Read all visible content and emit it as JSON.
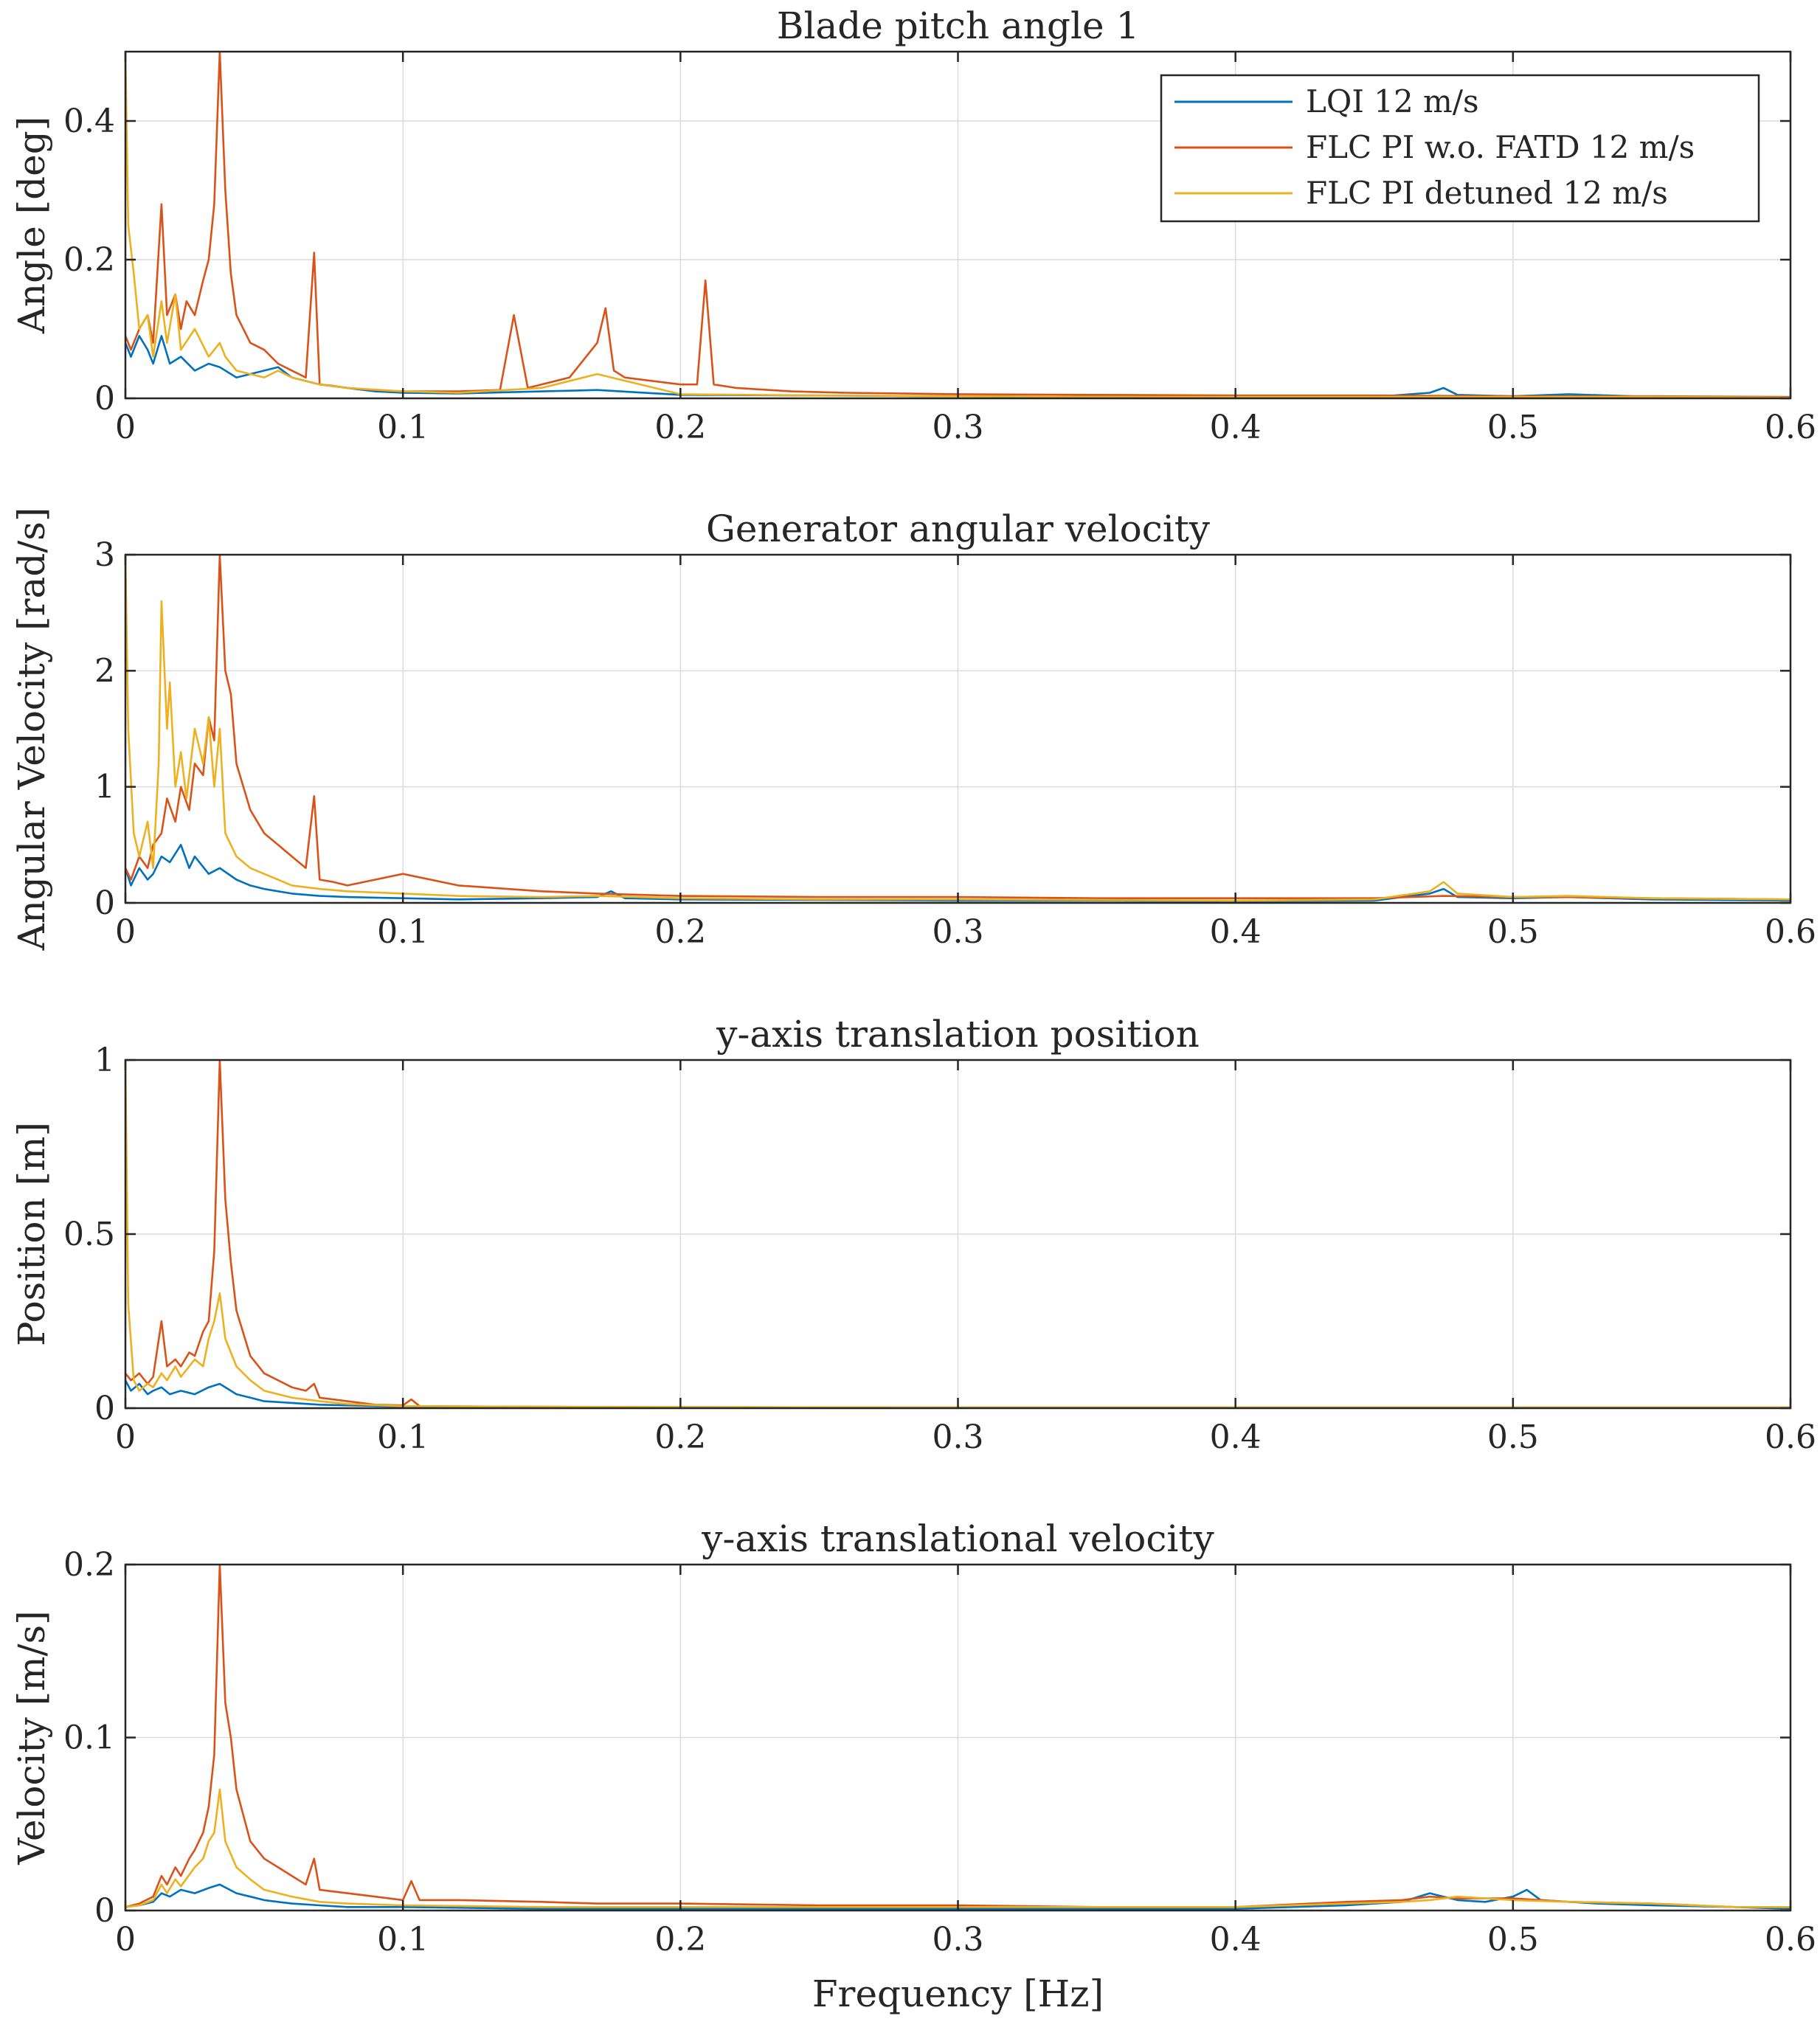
{
  "colors": {
    "lqi": "#0072BD",
    "flc_pi": "#D95319",
    "flc_pi_detuned": "#EDB120"
  },
  "legend": {
    "placement": "top-right",
    "items": [
      "LQI 12 m/s",
      "FLC PI w.o. FATD 12 m/s",
      "FLC PI detuned 12 m/s"
    ]
  },
  "chart_data": [
    {
      "type": "line",
      "title": "Blade pitch angle 1",
      "xlabel": "",
      "ylabel": "Angle [deg]",
      "xlim": [
        0,
        0.6
      ],
      "ylim": [
        0,
        0.5
      ],
      "xticks": [
        "0",
        "0.1",
        "0.2",
        "0.3",
        "0.4",
        "0.5",
        "0.6"
      ],
      "yticks": [
        "0",
        "0.2",
        "0.4"
      ],
      "grid": true,
      "series": [
        {
          "name": "LQI 12 m/s",
          "x": [
            0,
            0.002,
            0.005,
            0.008,
            0.01,
            0.013,
            0.016,
            0.02,
            0.025,
            0.03,
            0.034,
            0.04,
            0.045,
            0.05,
            0.055,
            0.06,
            0.065,
            0.07,
            0.08,
            0.09,
            0.1,
            0.12,
            0.15,
            0.17,
            0.2,
            0.25,
            0.3,
            0.35,
            0.4,
            0.45,
            0.47,
            0.475,
            0.48,
            0.5,
            0.52,
            0.55,
            0.6
          ],
          "y": [
            0.08,
            0.06,
            0.09,
            0.07,
            0.05,
            0.09,
            0.05,
            0.06,
            0.04,
            0.05,
            0.045,
            0.03,
            0.035,
            0.04,
            0.045,
            0.03,
            0.025,
            0.02,
            0.015,
            0.01,
            0.008,
            0.007,
            0.01,
            0.012,
            0.005,
            0.004,
            0.003,
            0.002,
            0.002,
            0.002,
            0.008,
            0.015,
            0.005,
            0.003,
            0.006,
            0.002,
            0.001
          ]
        },
        {
          "name": "FLC PI w.o. FATD 12 m/s",
          "x": [
            0,
            0.002,
            0.005,
            0.008,
            0.01,
            0.013,
            0.015,
            0.018,
            0.02,
            0.022,
            0.025,
            0.028,
            0.03,
            0.032,
            0.034,
            0.036,
            0.038,
            0.04,
            0.045,
            0.05,
            0.055,
            0.06,
            0.065,
            0.068,
            0.07,
            0.075,
            0.08,
            0.09,
            0.1,
            0.12,
            0.135,
            0.14,
            0.145,
            0.16,
            0.17,
            0.173,
            0.176,
            0.18,
            0.2,
            0.206,
            0.209,
            0.212,
            0.22,
            0.24,
            0.26,
            0.3,
            0.35,
            0.4,
            0.45,
            0.5,
            0.55,
            0.6
          ],
          "y": [
            0.09,
            0.07,
            0.1,
            0.12,
            0.08,
            0.28,
            0.12,
            0.15,
            0.1,
            0.14,
            0.12,
            0.17,
            0.2,
            0.28,
            0.5,
            0.3,
            0.18,
            0.12,
            0.08,
            0.07,
            0.05,
            0.04,
            0.03,
            0.21,
            0.02,
            0.018,
            0.015,
            0.012,
            0.01,
            0.01,
            0.012,
            0.12,
            0.015,
            0.03,
            0.08,
            0.13,
            0.04,
            0.03,
            0.02,
            0.02,
            0.17,
            0.02,
            0.015,
            0.01,
            0.008,
            0.006,
            0.005,
            0.004,
            0.004,
            0.003,
            0.003,
            0.002
          ]
        },
        {
          "name": "FLC PI detuned 12 m/s",
          "x": [
            0,
            0.001,
            0.003,
            0.005,
            0.008,
            0.01,
            0.013,
            0.015,
            0.018,
            0.02,
            0.025,
            0.03,
            0.034,
            0.036,
            0.04,
            0.045,
            0.05,
            0.055,
            0.06,
            0.07,
            0.08,
            0.1,
            0.12,
            0.15,
            0.17,
            0.2,
            0.25,
            0.3,
            0.35,
            0.4,
            0.45,
            0.5,
            0.55,
            0.6
          ],
          "y": [
            0.5,
            0.25,
            0.18,
            0.1,
            0.12,
            0.06,
            0.14,
            0.08,
            0.15,
            0.07,
            0.1,
            0.06,
            0.08,
            0.06,
            0.04,
            0.035,
            0.03,
            0.04,
            0.03,
            0.02,
            0.015,
            0.01,
            0.008,
            0.015,
            0.035,
            0.006,
            0.004,
            0.003,
            0.002,
            0.002,
            0.002,
            0.002,
            0.002,
            0.001
          ]
        }
      ]
    },
    {
      "type": "line",
      "title": "Generator angular velocity",
      "xlabel": "",
      "ylabel": "Angular Velocity [rad/s]",
      "xlim": [
        0,
        0.6
      ],
      "ylim": [
        0,
        3
      ],
      "xticks": [
        "0",
        "0.1",
        "0.2",
        "0.3",
        "0.4",
        "0.5",
        "0.6"
      ],
      "yticks": [
        "0",
        "1",
        "2",
        "3"
      ],
      "grid": true,
      "series": [
        {
          "name": "LQI 12 m/s",
          "x": [
            0,
            0.002,
            0.005,
            0.008,
            0.01,
            0.013,
            0.016,
            0.02,
            0.023,
            0.025,
            0.03,
            0.034,
            0.04,
            0.045,
            0.05,
            0.055,
            0.06,
            0.07,
            0.08,
            0.1,
            0.12,
            0.15,
            0.17,
            0.175,
            0.18,
            0.2,
            0.25,
            0.3,
            0.35,
            0.4,
            0.45,
            0.47,
            0.475,
            0.48,
            0.5,
            0.52,
            0.55,
            0.6
          ],
          "y": [
            0.3,
            0.15,
            0.3,
            0.2,
            0.25,
            0.4,
            0.35,
            0.5,
            0.3,
            0.4,
            0.25,
            0.3,
            0.2,
            0.15,
            0.12,
            0.1,
            0.08,
            0.06,
            0.05,
            0.04,
            0.03,
            0.04,
            0.05,
            0.1,
            0.04,
            0.03,
            0.025,
            0.02,
            0.02,
            0.015,
            0.02,
            0.08,
            0.12,
            0.05,
            0.04,
            0.05,
            0.03,
            0.02
          ]
        },
        {
          "name": "FLC PI w.o. FATD 12 m/s",
          "x": [
            0,
            0.002,
            0.005,
            0.008,
            0.01,
            0.013,
            0.015,
            0.018,
            0.02,
            0.023,
            0.025,
            0.028,
            0.03,
            0.032,
            0.034,
            0.036,
            0.038,
            0.04,
            0.045,
            0.05,
            0.055,
            0.06,
            0.065,
            0.068,
            0.07,
            0.075,
            0.08,
            0.09,
            0.1,
            0.12,
            0.15,
            0.17,
            0.2,
            0.25,
            0.3,
            0.35,
            0.4,
            0.45,
            0.475,
            0.5,
            0.52,
            0.55,
            0.6
          ],
          "y": [
            0.3,
            0.2,
            0.4,
            0.3,
            0.5,
            0.6,
            0.9,
            0.7,
            1.0,
            0.8,
            1.2,
            1.1,
            1.6,
            1.4,
            3.0,
            2.0,
            1.8,
            1.2,
            0.8,
            0.6,
            0.5,
            0.4,
            0.3,
            0.92,
            0.2,
            0.18,
            0.15,
            0.2,
            0.25,
            0.15,
            0.1,
            0.08,
            0.06,
            0.05,
            0.05,
            0.04,
            0.04,
            0.04,
            0.06,
            0.05,
            0.05,
            0.04,
            0.03
          ]
        },
        {
          "name": "FLC PI detuned 12 m/s",
          "x": [
            0,
            0.001,
            0.003,
            0.005,
            0.008,
            0.01,
            0.012,
            0.013,
            0.015,
            0.016,
            0.018,
            0.02,
            0.022,
            0.025,
            0.028,
            0.03,
            0.032,
            0.034,
            0.036,
            0.04,
            0.045,
            0.05,
            0.055,
            0.06,
            0.07,
            0.08,
            0.1,
            0.12,
            0.15,
            0.17,
            0.2,
            0.25,
            0.3,
            0.35,
            0.4,
            0.45,
            0.47,
            0.475,
            0.48,
            0.5,
            0.52,
            0.55,
            0.6
          ],
          "y": [
            3.0,
            1.5,
            0.6,
            0.4,
            0.7,
            0.3,
            1.2,
            2.6,
            1.5,
            1.9,
            1.0,
            1.3,
            0.9,
            1.5,
            1.2,
            1.6,
            1.0,
            1.5,
            0.6,
            0.4,
            0.3,
            0.25,
            0.2,
            0.15,
            0.12,
            0.1,
            0.08,
            0.06,
            0.05,
            0.06,
            0.04,
            0.03,
            0.03,
            0.025,
            0.02,
            0.03,
            0.1,
            0.18,
            0.08,
            0.05,
            0.06,
            0.04,
            0.03
          ]
        }
      ]
    },
    {
      "type": "line",
      "title": "y-axis translation position",
      "xlabel": "",
      "ylabel": "Position [m]",
      "xlim": [
        0,
        0.6
      ],
      "ylim": [
        0,
        1
      ],
      "xticks": [
        "0",
        "0.1",
        "0.2",
        "0.3",
        "0.4",
        "0.5",
        "0.6"
      ],
      "yticks": [
        "0",
        "0.5",
        "1"
      ],
      "grid": true,
      "series": [
        {
          "name": "LQI 12 m/s",
          "x": [
            0,
            0.002,
            0.005,
            0.008,
            0.01,
            0.013,
            0.016,
            0.02,
            0.025,
            0.03,
            0.034,
            0.04,
            0.045,
            0.05,
            0.06,
            0.07,
            0.08,
            0.1,
            0.15,
            0.2,
            0.3,
            0.4,
            0.5,
            0.6
          ],
          "y": [
            0.08,
            0.05,
            0.07,
            0.04,
            0.05,
            0.06,
            0.04,
            0.05,
            0.04,
            0.06,
            0.07,
            0.04,
            0.03,
            0.02,
            0.015,
            0.01,
            0.008,
            0.005,
            0.003,
            0.002,
            0.001,
            0.001,
            0.001,
            0.001
          ]
        },
        {
          "name": "FLC PI w.o. FATD 12 m/s",
          "x": [
            0,
            0.002,
            0.005,
            0.008,
            0.01,
            0.013,
            0.015,
            0.018,
            0.02,
            0.023,
            0.025,
            0.028,
            0.03,
            0.032,
            0.034,
            0.036,
            0.038,
            0.04,
            0.045,
            0.05,
            0.055,
            0.06,
            0.065,
            0.068,
            0.07,
            0.08,
            0.09,
            0.1,
            0.103,
            0.106,
            0.12,
            0.15,
            0.2,
            0.3,
            0.4,
            0.5,
            0.6
          ],
          "y": [
            0.1,
            0.08,
            0.1,
            0.07,
            0.09,
            0.25,
            0.12,
            0.14,
            0.12,
            0.16,
            0.15,
            0.22,
            0.25,
            0.45,
            1.0,
            0.6,
            0.42,
            0.28,
            0.15,
            0.1,
            0.08,
            0.06,
            0.05,
            0.07,
            0.03,
            0.02,
            0.01,
            0.008,
            0.025,
            0.006,
            0.005,
            0.004,
            0.003,
            0.002,
            0.002,
            0.002,
            0.002
          ]
        },
        {
          "name": "FLC PI detuned 12 m/s",
          "x": [
            0,
            0.001,
            0.003,
            0.005,
            0.008,
            0.01,
            0.013,
            0.015,
            0.018,
            0.02,
            0.025,
            0.028,
            0.03,
            0.032,
            0.034,
            0.036,
            0.04,
            0.045,
            0.05,
            0.06,
            0.07,
            0.08,
            0.1,
            0.15,
            0.2,
            0.3,
            0.4,
            0.5,
            0.6
          ],
          "y": [
            1.0,
            0.3,
            0.08,
            0.05,
            0.07,
            0.06,
            0.1,
            0.08,
            0.12,
            0.09,
            0.14,
            0.12,
            0.2,
            0.25,
            0.33,
            0.2,
            0.12,
            0.08,
            0.05,
            0.03,
            0.02,
            0.012,
            0.006,
            0.004,
            0.003,
            0.002,
            0.002,
            0.002,
            0.002
          ]
        }
      ]
    },
    {
      "type": "line",
      "title": "y-axis translational velocity",
      "xlabel": "Frequency [Hz]",
      "ylabel": "Velocity [m/s]",
      "xlim": [
        0,
        0.6
      ],
      "ylim": [
        0,
        0.2
      ],
      "xticks": [
        "0",
        "0.1",
        "0.2",
        "0.3",
        "0.4",
        "0.5",
        "0.6"
      ],
      "yticks": [
        "0",
        "0.1",
        "0.2"
      ],
      "grid": true,
      "series": [
        {
          "name": "LQI 12 m/s",
          "x": [
            0,
            0.005,
            0.01,
            0.013,
            0.016,
            0.02,
            0.025,
            0.03,
            0.034,
            0.04,
            0.045,
            0.05,
            0.06,
            0.07,
            0.08,
            0.1,
            0.15,
            0.2,
            0.3,
            0.4,
            0.44,
            0.46,
            0.47,
            0.48,
            0.49,
            0.5,
            0.505,
            0.51,
            0.53,
            0.55,
            0.58,
            0.6
          ],
          "y": [
            0.002,
            0.003,
            0.005,
            0.01,
            0.008,
            0.012,
            0.01,
            0.013,
            0.015,
            0.01,
            0.008,
            0.006,
            0.004,
            0.003,
            0.002,
            0.002,
            0.001,
            0.001,
            0.001,
            0.001,
            0.003,
            0.005,
            0.01,
            0.006,
            0.005,
            0.008,
            0.012,
            0.006,
            0.004,
            0.003,
            0.002,
            0.001
          ]
        },
        {
          "name": "FLC PI w.o. FATD 12 m/s",
          "x": [
            0,
            0.005,
            0.01,
            0.013,
            0.015,
            0.018,
            0.02,
            0.023,
            0.025,
            0.028,
            0.03,
            0.032,
            0.034,
            0.036,
            0.038,
            0.04,
            0.045,
            0.05,
            0.055,
            0.06,
            0.065,
            0.068,
            0.07,
            0.08,
            0.09,
            0.1,
            0.103,
            0.106,
            0.12,
            0.15,
            0.17,
            0.2,
            0.25,
            0.3,
            0.35,
            0.4,
            0.44,
            0.46,
            0.47,
            0.48,
            0.5,
            0.52,
            0.55,
            0.58,
            0.6
          ],
          "y": [
            0.002,
            0.004,
            0.008,
            0.02,
            0.015,
            0.025,
            0.02,
            0.03,
            0.035,
            0.045,
            0.06,
            0.09,
            0.2,
            0.12,
            0.1,
            0.07,
            0.04,
            0.03,
            0.025,
            0.02,
            0.015,
            0.03,
            0.012,
            0.01,
            0.008,
            0.006,
            0.017,
            0.006,
            0.006,
            0.005,
            0.004,
            0.004,
            0.003,
            0.003,
            0.002,
            0.002,
            0.005,
            0.006,
            0.008,
            0.007,
            0.007,
            0.005,
            0.004,
            0.002,
            0.002
          ]
        },
        {
          "name": "FLC PI detuned 12 m/s",
          "x": [
            0,
            0.005,
            0.01,
            0.013,
            0.015,
            0.018,
            0.02,
            0.025,
            0.028,
            0.03,
            0.032,
            0.034,
            0.036,
            0.04,
            0.045,
            0.05,
            0.06,
            0.07,
            0.08,
            0.1,
            0.15,
            0.2,
            0.3,
            0.4,
            0.44,
            0.46,
            0.47,
            0.48,
            0.49,
            0.5,
            0.52,
            0.55,
            0.58,
            0.6
          ],
          "y": [
            0.002,
            0.003,
            0.006,
            0.015,
            0.01,
            0.018,
            0.014,
            0.025,
            0.03,
            0.04,
            0.045,
            0.07,
            0.04,
            0.025,
            0.018,
            0.012,
            0.008,
            0.005,
            0.004,
            0.003,
            0.002,
            0.002,
            0.002,
            0.002,
            0.004,
            0.005,
            0.006,
            0.008,
            0.007,
            0.006,
            0.005,
            0.004,
            0.002,
            0.002
          ]
        }
      ]
    }
  ]
}
